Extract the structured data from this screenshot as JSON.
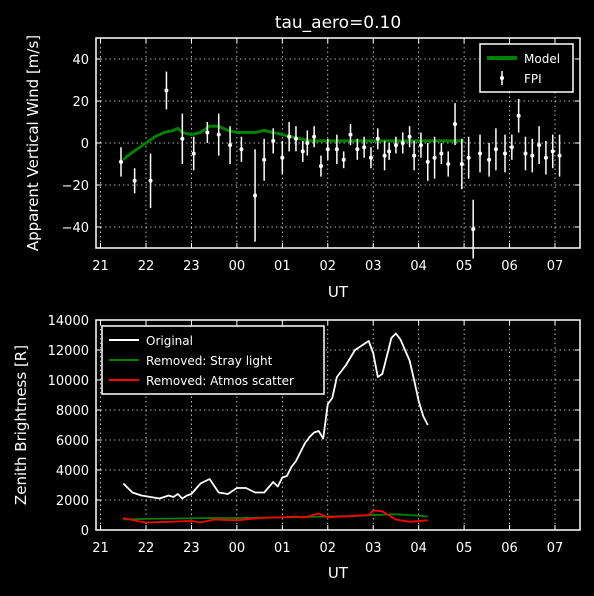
{
  "chart_data": [
    {
      "type": "line",
      "title": "tau_aero=0.10",
      "xlabel": "UT",
      "ylabel": "Apparent Vertical Wind [m/s]",
      "xlim": [
        20.9,
        31.55
      ],
      "ylim": [
        -50,
        50
      ],
      "xticks": [
        21,
        22,
        23,
        24,
        25,
        26,
        27,
        28,
        29,
        30,
        31
      ],
      "xticklabels": [
        "21",
        "22",
        "23",
        "00",
        "01",
        "02",
        "03",
        "04",
        "05",
        "06",
        "07"
      ],
      "yticks": [
        -40,
        -20,
        0,
        20,
        40
      ],
      "yticklabels": [
        "−40",
        "−20",
        "0",
        "20",
        "40"
      ],
      "grid": true,
      "legend": "top-right",
      "legend_labels": [
        "Model",
        "FPI"
      ],
      "series": [
        {
          "name": "Model",
          "color": "#008000",
          "x": [
            21.5,
            21.6,
            21.8,
            22.0,
            22.2,
            22.4,
            22.6,
            22.7,
            22.8,
            23.0,
            23.2,
            23.4,
            23.6,
            23.8,
            24.0,
            24.2,
            24.4,
            24.6,
            24.8,
            25.0,
            25.2,
            25.4,
            25.6,
            25.8,
            26.0,
            26.4,
            26.8,
            27.2,
            27.6,
            28.0,
            28.4,
            28.8,
            29.0
          ],
          "y": [
            -8,
            -6,
            -3,
            0,
            3,
            5,
            6,
            7,
            5,
            4,
            5,
            8,
            8,
            6,
            5,
            5,
            5,
            6,
            5,
            4,
            3,
            2,
            1,
            1,
            1,
            1,
            1,
            1,
            1,
            1,
            1,
            1,
            1
          ]
        },
        {
          "name": "FPI",
          "color": "#ffffff",
          "type": "errorbar",
          "x": [
            21.45,
            21.75,
            22.1,
            22.45,
            22.8,
            23.05,
            23.35,
            23.6,
            23.85,
            24.1,
            24.4,
            24.6,
            24.8,
            25.0,
            25.15,
            25.3,
            25.45,
            25.55,
            25.7,
            25.85,
            26.0,
            26.2,
            26.35,
            26.5,
            26.65,
            26.8,
            26.95,
            27.1,
            27.25,
            27.35,
            27.5,
            27.65,
            27.8,
            27.9,
            28.05,
            28.2,
            28.35,
            28.5,
            28.65,
            28.8,
            28.95,
            29.1,
            29.2,
            29.35,
            29.55,
            29.7,
            29.9,
            30.05,
            30.2,
            30.35,
            30.5,
            30.65,
            30.8,
            30.95,
            31.1
          ],
          "y": [
            -9,
            -18,
            -18,
            25,
            2,
            -5,
            5,
            4,
            -1,
            -3,
            -25,
            -8,
            1,
            -7,
            3,
            2,
            -4,
            0,
            3,
            -11,
            -3,
            -3,
            -8,
            4,
            -3,
            -2,
            -7,
            2,
            -6,
            -4,
            -1,
            0,
            3,
            -6,
            -1,
            -9,
            -7,
            -5,
            -10,
            9,
            -10,
            -7,
            -41,
            -5,
            -8,
            -3,
            -5,
            -2,
            13,
            -5,
            -6,
            -1,
            -7,
            -4,
            -6
          ],
          "err": [
            7,
            6,
            13,
            9,
            12,
            8,
            5,
            10,
            9,
            6,
            22,
            10,
            6,
            8,
            7,
            6,
            5,
            6,
            5,
            5,
            5,
            7,
            4,
            5,
            5,
            5,
            5,
            5,
            7,
            4,
            4,
            5,
            5,
            7,
            6,
            9,
            10,
            5,
            6,
            10,
            12,
            10,
            14,
            9,
            8,
            10,
            9,
            6,
            8,
            8,
            8,
            9,
            8,
            8,
            10
          ]
        }
      ]
    },
    {
      "type": "line",
      "title": "",
      "xlabel": "UT",
      "ylabel": "Zenith Brightness [R]",
      "xlim": [
        20.9,
        31.55
      ],
      "ylim": [
        0,
        14000
      ],
      "xticks": [
        21,
        22,
        23,
        24,
        25,
        26,
        27,
        28,
        29,
        30,
        31
      ],
      "xticklabels": [
        "21",
        "22",
        "23",
        "00",
        "01",
        "02",
        "03",
        "04",
        "05",
        "06",
        "07"
      ],
      "yticks": [
        0,
        2000,
        4000,
        6000,
        8000,
        10000,
        12000,
        14000
      ],
      "yticklabels": [
        "0",
        "2000",
        "4000",
        "6000",
        "8000",
        "10000",
        "12000",
        "14000"
      ],
      "grid": true,
      "legend": "top-left",
      "legend_labels": [
        "Original",
        "Removed: Stray light",
        "Removed: Atmos scatter"
      ],
      "series": [
        {
          "name": "Original",
          "color": "#ffffff",
          "x": [
            21.5,
            21.7,
            21.9,
            22.1,
            22.3,
            22.5,
            22.6,
            22.7,
            22.8,
            22.9,
            23.0,
            23.2,
            23.4,
            23.6,
            23.8,
            24.0,
            24.2,
            24.4,
            24.6,
            24.8,
            24.9,
            25.0,
            25.1,
            25.2,
            25.3,
            25.4,
            25.5,
            25.6,
            25.7,
            25.8,
            25.9,
            26.0,
            26.1,
            26.2,
            26.4,
            26.6,
            26.8,
            26.9,
            27.0,
            27.1,
            27.2,
            27.3,
            27.4,
            27.5,
            27.6,
            27.7,
            27.8,
            27.9,
            28.0,
            28.1,
            28.2
          ],
          "y": [
            3100,
            2500,
            2300,
            2200,
            2100,
            2300,
            2200,
            2400,
            2100,
            2300,
            2400,
            3100,
            3400,
            2500,
            2400,
            2800,
            2800,
            2500,
            2500,
            3200,
            2900,
            3500,
            3600,
            4200,
            4600,
            5200,
            5800,
            6200,
            6500,
            6600,
            6100,
            8400,
            8800,
            10200,
            11000,
            12000,
            12400,
            12600,
            11800,
            10200,
            10400,
            11600,
            12800,
            13100,
            12700,
            12000,
            11300,
            10000,
            8600,
            7600,
            7000
          ]
        },
        {
          "name": "Removed: Stray light",
          "color": "#008000",
          "x": [
            21.5,
            22.0,
            22.5,
            23.0,
            23.5,
            24.0,
            24.5,
            25.0,
            25.5,
            26.0,
            26.5,
            27.0,
            27.5,
            28.0,
            28.2
          ],
          "y": [
            700,
            750,
            760,
            780,
            800,
            800,
            820,
            850,
            870,
            900,
            920,
            1000,
            1050,
            960,
            900
          ]
        },
        {
          "name": "Removed: Atmos scatter",
          "color": "#ff0000",
          "x": [
            21.5,
            21.8,
            22.0,
            22.5,
            23.0,
            23.2,
            23.5,
            24.0,
            24.5,
            25.0,
            25.3,
            25.5,
            25.8,
            26.0,
            26.3,
            26.6,
            26.9,
            27.0,
            27.2,
            27.5,
            27.8,
            28.0,
            28.2
          ],
          "y": [
            800,
            600,
            500,
            550,
            600,
            500,
            700,
            650,
            800,
            850,
            900,
            850,
            1100,
            850,
            900,
            950,
            1000,
            1300,
            1250,
            700,
            550,
            600,
            650
          ]
        }
      ]
    }
  ]
}
